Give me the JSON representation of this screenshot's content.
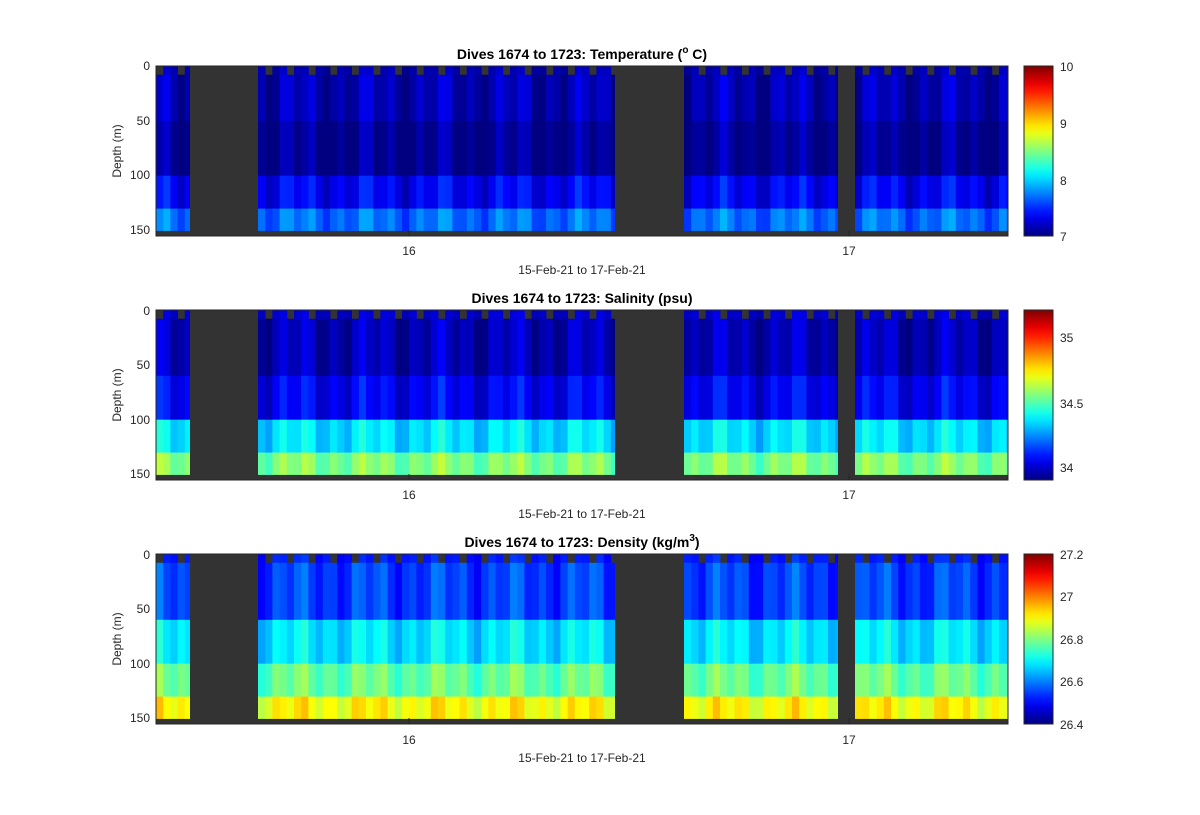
{
  "colors": {
    "background": "#ffffff",
    "no_data": "#333333",
    "axes_line": "#262626"
  },
  "colormap": "jet",
  "chart_data": [
    {
      "type": "heatmap",
      "title_main": "Dives 1674 to 1723: Temperature (",
      "title_sup": "o",
      "title_tail": " C)",
      "ylabel": "Depth (m)",
      "xlabel": "15-Feb-21 to 17-Feb-21",
      "x_ticks": [
        "16",
        "17"
      ],
      "y_ticks": [
        "0",
        "50",
        "100",
        "150"
      ],
      "ylim": [
        0,
        155
      ],
      "y_reversed": true,
      "colorbar": {
        "min": 7,
        "max": 10,
        "ticks": [
          "10",
          "9",
          "8",
          "7"
        ]
      },
      "bands": [
        {
          "from": 0,
          "to": 8,
          "value": 7.15,
          "kind": "surface"
        },
        {
          "from": 8,
          "to": 50,
          "value": 7.15,
          "kind": "fade"
        },
        {
          "from": 50,
          "to": 100,
          "value": 7.05,
          "kind": "fade"
        },
        {
          "from": 100,
          "to": 130,
          "value": 7.35,
          "kind": "fade"
        },
        {
          "from": 130,
          "to": 150,
          "value": 7.7,
          "kind": "fade"
        }
      ]
    },
    {
      "type": "heatmap",
      "title_main": "Dives 1674 to 1723: Salinity (psu)",
      "title_sup": "",
      "title_tail": "",
      "ylabel": "Depth (m)",
      "xlabel": "15-Feb-21 to 17-Feb-21",
      "x_ticks": [
        "16",
        "17"
      ],
      "y_ticks": [
        "0",
        "50",
        "100",
        "150"
      ],
      "ylim": [
        0,
        155
      ],
      "y_reversed": true,
      "colorbar": {
        "min": 33.9,
        "max": 35.2,
        "ticks": [
          "35",
          "34.5",
          "34"
        ]
      },
      "bands": [
        {
          "from": 0,
          "to": 8,
          "value": 34.0,
          "kind": "surface"
        },
        {
          "from": 8,
          "to": 60,
          "value": 33.97,
          "kind": "fade"
        },
        {
          "from": 60,
          "to": 100,
          "value": 34.05,
          "kind": "fade"
        },
        {
          "from": 100,
          "to": 130,
          "value": 34.35,
          "kind": "fade"
        },
        {
          "from": 130,
          "to": 150,
          "value": 34.55,
          "kind": "fade"
        }
      ]
    },
    {
      "type": "heatmap",
      "title_main": "Dives 1674 to 1723: Density (kg/m",
      "title_sup": "3",
      "title_tail": ")",
      "ylabel": "Depth (m)",
      "xlabel": "15-Feb-21 to 17-Feb-21",
      "x_ticks": [
        "16",
        "17"
      ],
      "y_ticks": [
        "0",
        "50",
        "100",
        "150"
      ],
      "ylim": [
        0,
        155
      ],
      "y_reversed": true,
      "colorbar": {
        "min": 26.4,
        "max": 27.2,
        "ticks": [
          "27.2",
          "27",
          "26.8",
          "26.6",
          "26.4"
        ]
      },
      "bands": [
        {
          "from": 0,
          "to": 8,
          "value": 26.52,
          "kind": "surface"
        },
        {
          "from": 8,
          "to": 60,
          "value": 26.55,
          "kind": "fade"
        },
        {
          "from": 60,
          "to": 100,
          "value": 26.68,
          "kind": "fade"
        },
        {
          "from": 100,
          "to": 130,
          "value": 26.78,
          "kind": "fade"
        },
        {
          "from": 130,
          "to": 150,
          "value": 26.9,
          "kind": "fade"
        }
      ]
    }
  ]
}
